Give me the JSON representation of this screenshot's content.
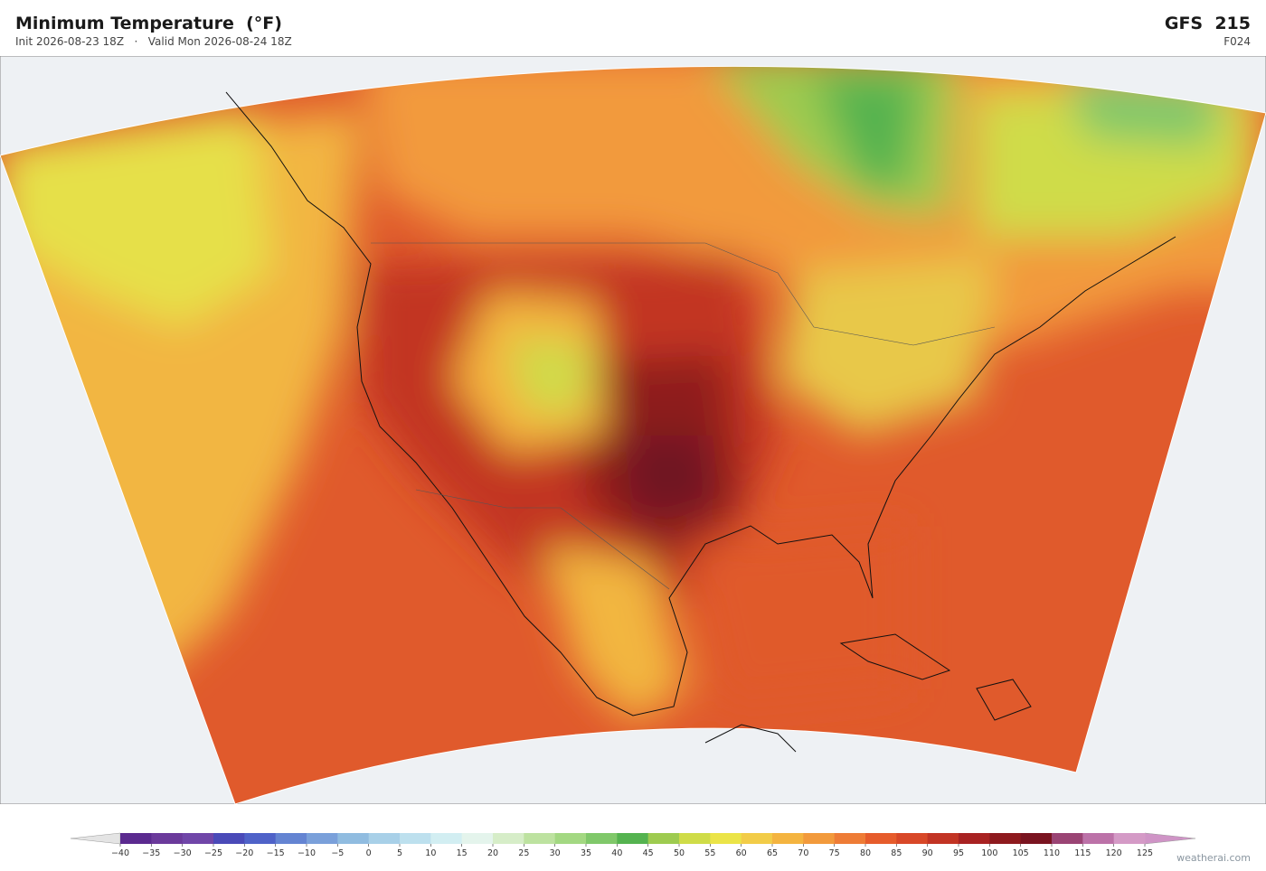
{
  "header": {
    "title": "Minimum Temperature  (°F)",
    "init": "Init 2026-08-23 18Z",
    "separator": "·",
    "valid": "Valid Mon 2026-08-24 18Z",
    "model": "GFS  215",
    "forecast_hour": "F024"
  },
  "colorbar": {
    "ticks": [
      {
        "value": -40,
        "label": "−40"
      },
      {
        "value": -35,
        "label": "−35"
      },
      {
        "value": -30,
        "label": "−30"
      },
      {
        "value": -25,
        "label": "−25"
      },
      {
        "value": -20,
        "label": "−20"
      },
      {
        "value": -15,
        "label": "−15"
      },
      {
        "value": -10,
        "label": "−10"
      },
      {
        "value": -5,
        "label": "−5"
      },
      0,
      5,
      10,
      15,
      20,
      25,
      30,
      35,
      40,
      45,
      50,
      55,
      60,
      65,
      70,
      75,
      80,
      85,
      90,
      95,
      100,
      105,
      110,
      115,
      120,
      125
    ],
    "colors": [
      "#5b2a8f",
      "#6b3a9b",
      "#7046a8",
      "#4a4ab8",
      "#4f62c8",
      "#6484d2",
      "#7aa0da",
      "#90bce0",
      "#a8d0e8",
      "#bde0ee",
      "#d2eef2",
      "#e4f4ec",
      "#d6edc8",
      "#bde2a0",
      "#a3d882",
      "#80c86a",
      "#55b350",
      "#9ecb50",
      "#cfdc48",
      "#ebe448",
      "#f2cc48",
      "#f4b440",
      "#f29a3c",
      "#ee7c36",
      "#e65c2c",
      "#d84828",
      "#c23424",
      "#a82222",
      "#8e1a1e",
      "#7a1420",
      "#9a4474",
      "#bc72a8",
      "#d49ac6"
    ],
    "under_color": "#e4e4e4",
    "over_color": "#cf94c6"
  },
  "credit": "weatherai.com"
}
